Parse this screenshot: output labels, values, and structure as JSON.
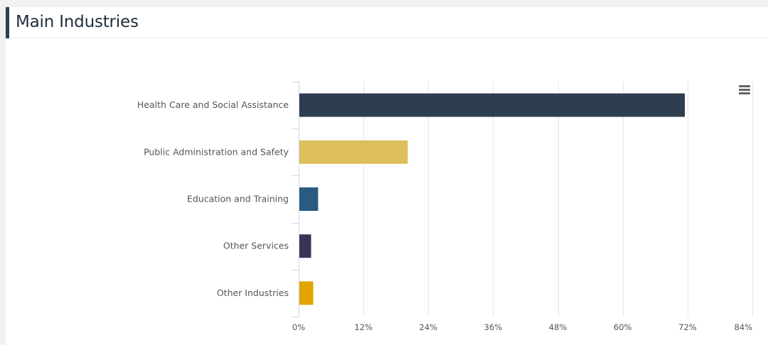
{
  "panel": {
    "title": "Main Industries"
  },
  "chart_data": {
    "type": "bar",
    "orientation": "horizontal",
    "title": "",
    "xlabel": "",
    "ylabel": "",
    "categories": [
      "Health Care and Social Assistance",
      "Public Administration and Safety",
      "Education and Training",
      "Other Services",
      "Other Industries"
    ],
    "values": [
      71.5,
      20.2,
      3.6,
      2.3,
      2.7
    ],
    "colors": [
      "#2d3e4f",
      "#dcbf5a",
      "#285a82",
      "#363654",
      "#e3a400"
    ],
    "xlim": [
      0,
      84
    ],
    "ticks": [
      0,
      12,
      24,
      36,
      48,
      60,
      72,
      84
    ],
    "tick_labels": [
      "0%",
      "12%",
      "24%",
      "36%",
      "48%",
      "60%",
      "72%",
      "84%"
    ],
    "grid": true,
    "legend": "none"
  },
  "menu": {
    "icon": "hamburger-menu-icon"
  }
}
